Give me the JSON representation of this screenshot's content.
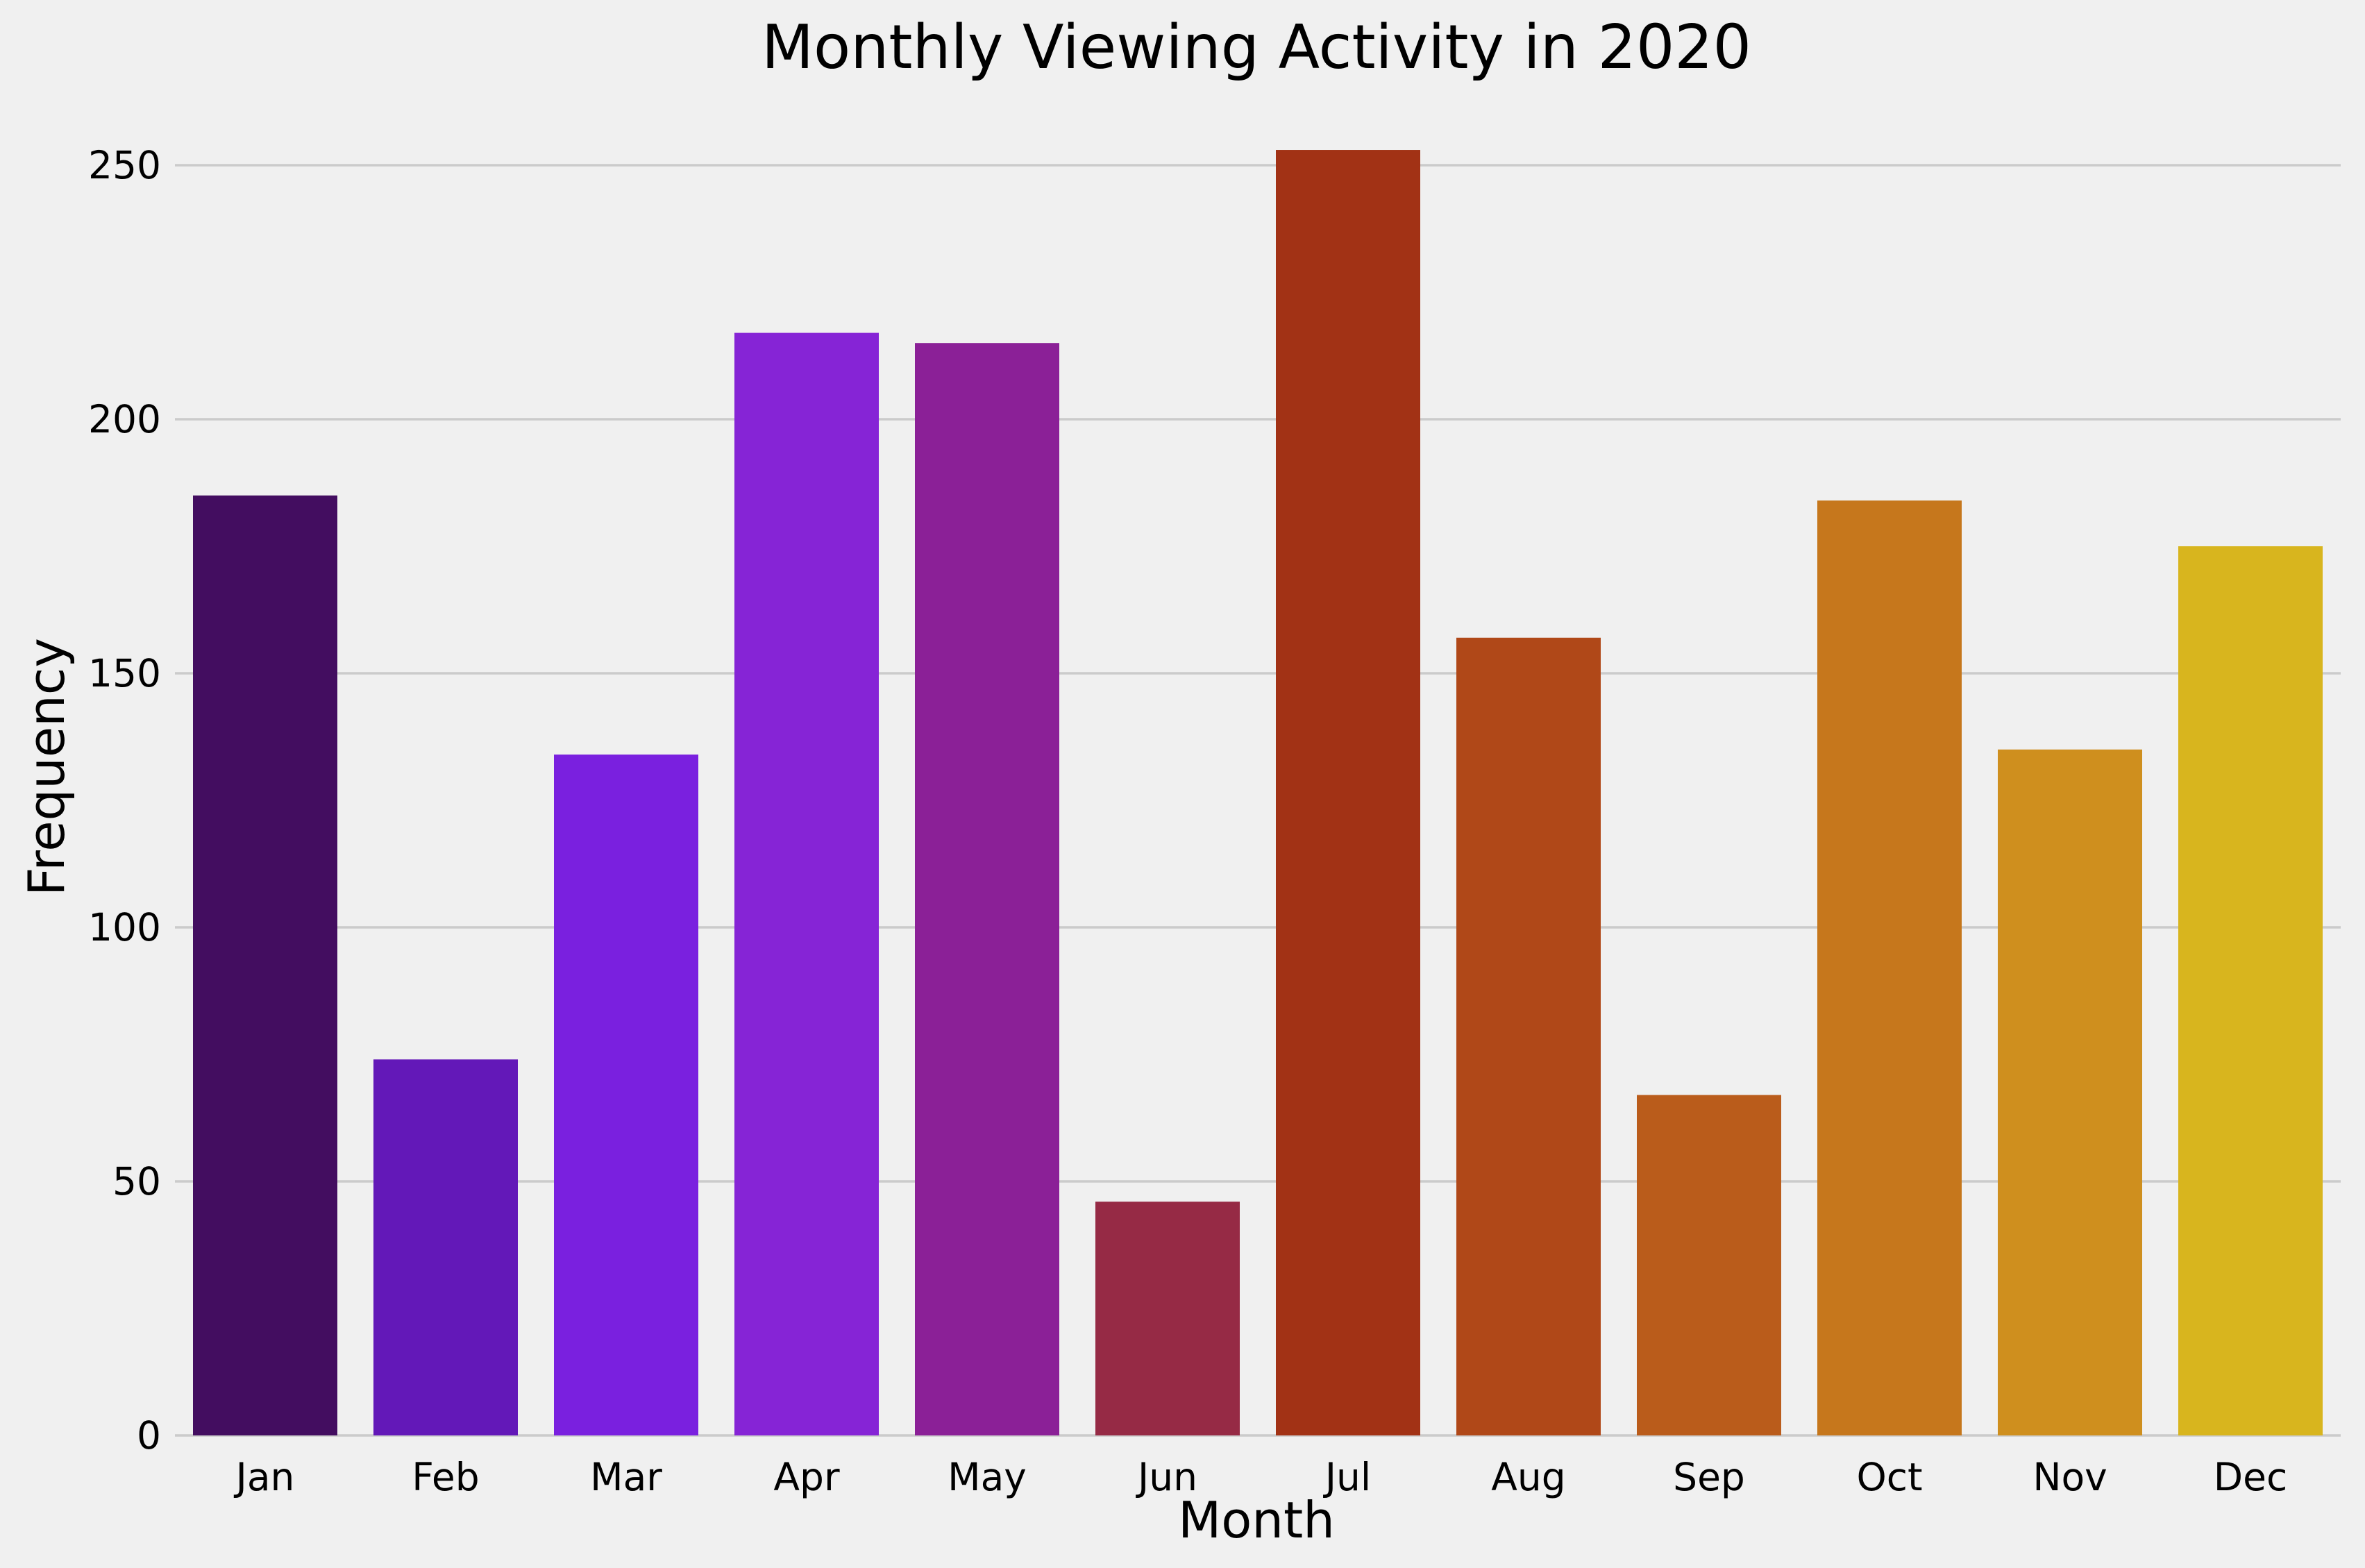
{
  "chart_data": {
    "type": "bar",
    "title": "Monthly Viewing Activity in 2020",
    "xlabel": "Month",
    "ylabel": "Frequency",
    "categories": [
      "Jan",
      "Feb",
      "Mar",
      "Apr",
      "May",
      "Jun",
      "Jul",
      "Aug",
      "Sep",
      "Oct",
      "Nov",
      "Dec"
    ],
    "values": [
      185,
      74,
      134,
      217,
      215,
      46,
      253,
      157,
      67,
      184,
      135,
      175
    ],
    "colors": [
      "#430d60",
      "#6318b8",
      "#7a20df",
      "#8624d6",
      "#8b2097",
      "#962a45",
      "#a23215",
      "#b04818",
      "#ba5c1b",
      "#c6771c",
      "#cf8f1e",
      "#d8b51e"
    ],
    "ylim": [
      0,
      260
    ],
    "yticks": [
      0,
      50,
      100,
      150,
      200,
      250
    ],
    "grid": "horizontal",
    "legend": "none"
  }
}
